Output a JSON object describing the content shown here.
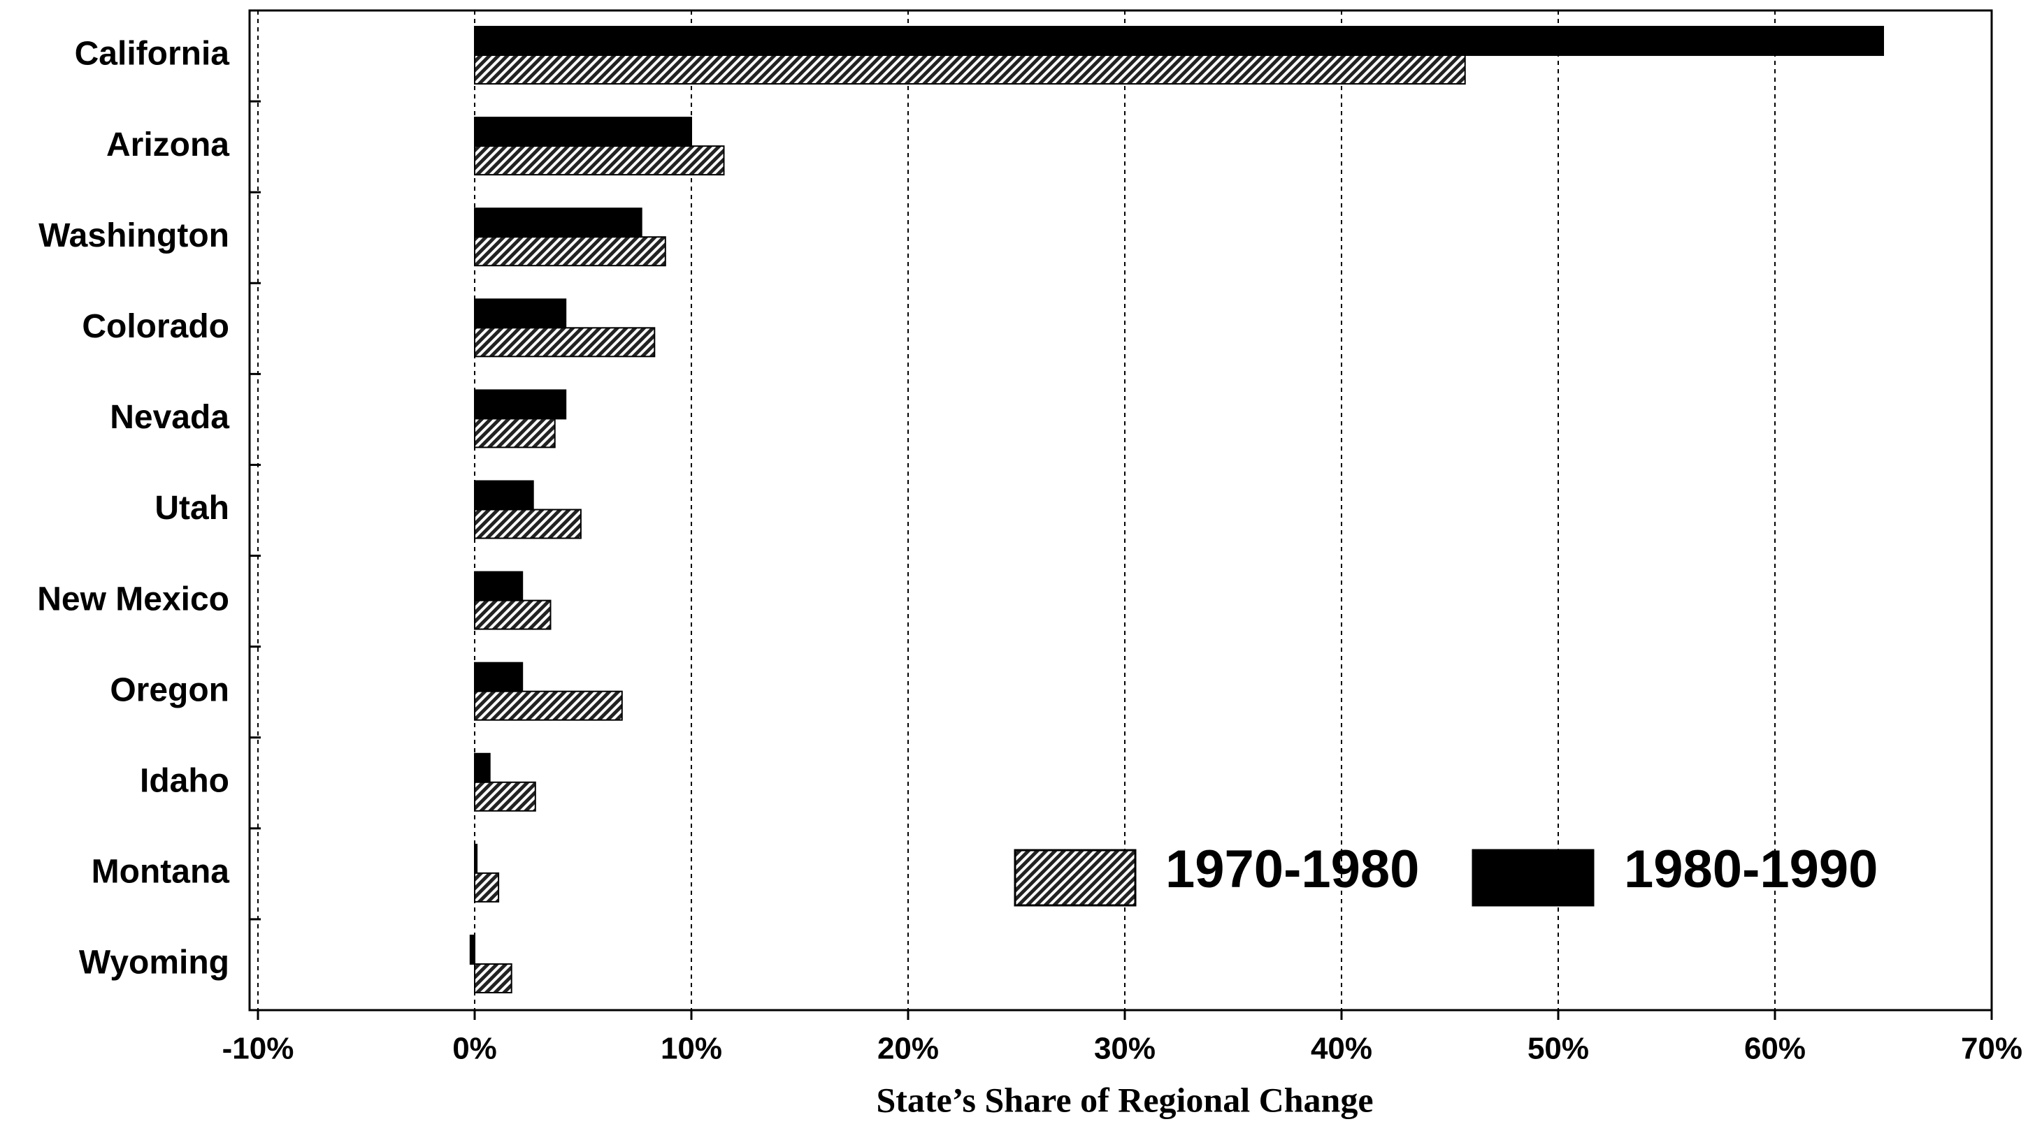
{
  "chart_data": {
    "type": "hbar",
    "xlabel": "State’s Share of Regional Change",
    "categories": [
      "California",
      "Arizona",
      "Washington",
      "Colorado",
      "Nevada",
      "Utah",
      "New Mexico",
      "Oregon",
      "Idaho",
      "Montana",
      "Wyoming"
    ],
    "series": [
      {
        "name": "1970-1980",
        "color": "hatch",
        "values": [
          45.7,
          11.5,
          8.8,
          8.3,
          3.7,
          4.9,
          3.5,
          6.8,
          2.8,
          1.1,
          1.7
        ]
      },
      {
        "name": "1980-1990",
        "color": "#000000",
        "values": [
          65.0,
          10.0,
          7.7,
          4.2,
          4.2,
          2.7,
          2.2,
          2.2,
          0.7,
          0.1,
          -0.2
        ]
      }
    ],
    "xlim": [
      -10,
      70
    ],
    "xticks": [
      {
        "value": -10,
        "label": "-10%"
      },
      {
        "value": 0,
        "label": "0%"
      },
      {
        "value": 10,
        "label": "10%"
      },
      {
        "value": 20,
        "label": "20%"
      },
      {
        "value": 30,
        "label": "30%"
      },
      {
        "value": 40,
        "label": "40%"
      },
      {
        "value": 50,
        "label": "50%"
      },
      {
        "value": 60,
        "label": "60%"
      },
      {
        "value": 70,
        "label": "70%"
      }
    ],
    "grid": true,
    "legend": "lower right"
  }
}
